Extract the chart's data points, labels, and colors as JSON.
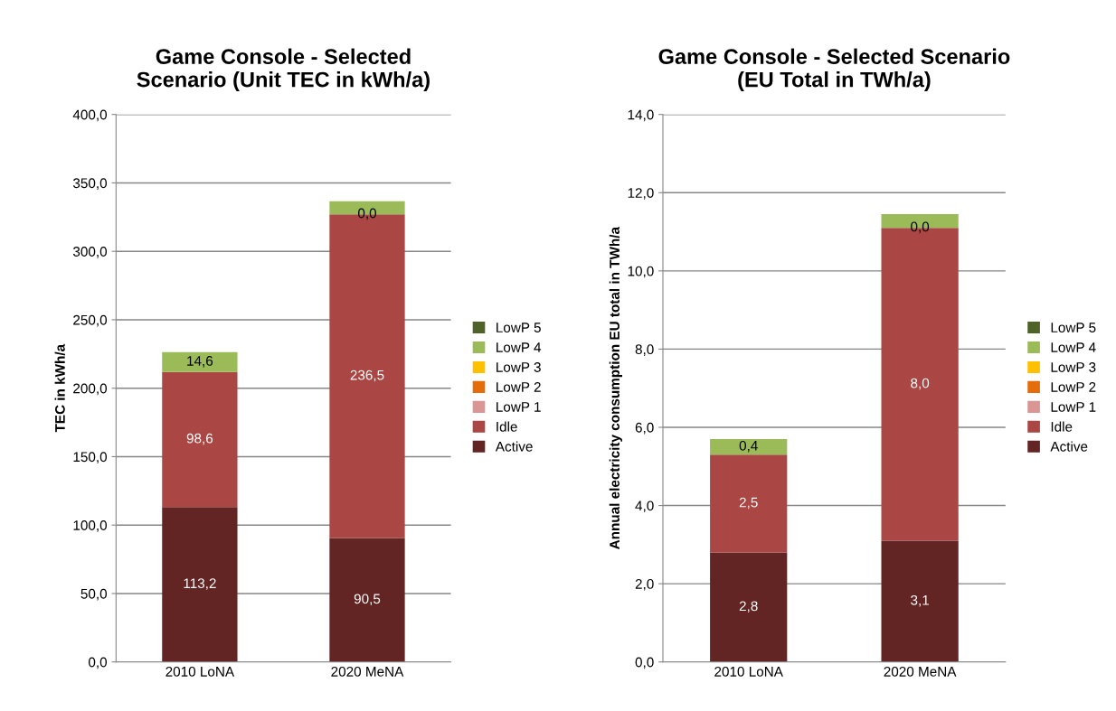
{
  "chart_data": [
    {
      "type": "bar",
      "stacked": true,
      "title": "Game Console - Selected Scenario (Unit TEC in kWh/a)",
      "ylabel": "TEC in kWh/a",
      "categories": [
        "2010 LoNA",
        "2020 MeNA"
      ],
      "ylim": [
        0,
        400
      ],
      "yticks": [
        {
          "value": 0,
          "label": "0,0"
        },
        {
          "value": 50,
          "label": "50,0"
        },
        {
          "value": 100,
          "label": "100,0"
        },
        {
          "value": 150,
          "label": "150,0"
        },
        {
          "value": 200,
          "label": "200,0"
        },
        {
          "value": 250,
          "label": "250,0"
        },
        {
          "value": 300,
          "label": "300,0"
        },
        {
          "value": 350,
          "label": "350,0"
        },
        {
          "value": 400,
          "label": "400,0"
        }
      ],
      "grid": "y",
      "legend": "right",
      "series": [
        {
          "name": "Active",
          "color": "#632523",
          "values": [
            113.2,
            90.5
          ],
          "value_labels": [
            "113,2",
            "90,5"
          ]
        },
        {
          "name": "Idle",
          "color": "#aa4744",
          "values": [
            98.6,
            236.5
          ],
          "value_labels": [
            "98,6",
            "236,5"
          ]
        },
        {
          "name": "LowP 1",
          "color": "#d99694",
          "values": [
            0,
            0
          ],
          "value_labels": [
            null,
            "0,0"
          ]
        },
        {
          "name": "LowP 2",
          "color": "#e46c0a",
          "values": [
            0,
            0
          ],
          "value_labels": [
            null,
            null
          ]
        },
        {
          "name": "LowP 3",
          "color": "#ffc000",
          "values": [
            0,
            0
          ],
          "value_labels": [
            null,
            null
          ]
        },
        {
          "name": "LowP 4",
          "color": "#9bbb59",
          "values": [
            14.6,
            9.6
          ],
          "value_labels": [
            "14,6",
            null
          ]
        },
        {
          "name": "LowP 5",
          "color": "#4f6228",
          "values": [
            0,
            0
          ],
          "value_labels": [
            null,
            null
          ]
        }
      ]
    },
    {
      "type": "bar",
      "stacked": true,
      "title": "Game Console - Selected Scenario (EU Total in TWh/a)",
      "ylabel": "Annual electricity consumption EU total in TWh/a",
      "categories": [
        "2010 LoNA",
        "2020 MeNA"
      ],
      "ylim": [
        0,
        14
      ],
      "yticks": [
        {
          "value": 0,
          "label": "0,0"
        },
        {
          "value": 2,
          "label": "2,0"
        },
        {
          "value": 4,
          "label": "4,0"
        },
        {
          "value": 6,
          "label": "6,0"
        },
        {
          "value": 8,
          "label": "8,0"
        },
        {
          "value": 10,
          "label": "10,0"
        },
        {
          "value": 12,
          "label": "12,0"
        },
        {
          "value": 14,
          "label": "14,0"
        }
      ],
      "grid": "y",
      "legend": "right",
      "series": [
        {
          "name": "Active",
          "color": "#632523",
          "values": [
            2.8,
            3.1
          ],
          "value_labels": [
            "2,8",
            "3,1"
          ]
        },
        {
          "name": "Idle",
          "color": "#aa4744",
          "values": [
            2.5,
            8.0
          ],
          "value_labels": [
            "2,5",
            "8,0"
          ]
        },
        {
          "name": "LowP 1",
          "color": "#d99694",
          "values": [
            0,
            0
          ],
          "value_labels": [
            null,
            "0,0"
          ]
        },
        {
          "name": "LowP 2",
          "color": "#e46c0a",
          "values": [
            0,
            0
          ],
          "value_labels": [
            null,
            null
          ]
        },
        {
          "name": "LowP 3",
          "color": "#ffc000",
          "values": [
            0,
            0
          ],
          "value_labels": [
            null,
            null
          ]
        },
        {
          "name": "LowP 4",
          "color": "#9bbb59",
          "values": [
            0.4,
            0.35
          ],
          "value_labels": [
            "0,4",
            null
          ]
        },
        {
          "name": "LowP 5",
          "color": "#4f6228",
          "values": [
            0,
            0
          ],
          "value_labels": [
            null,
            null
          ]
        }
      ]
    }
  ]
}
